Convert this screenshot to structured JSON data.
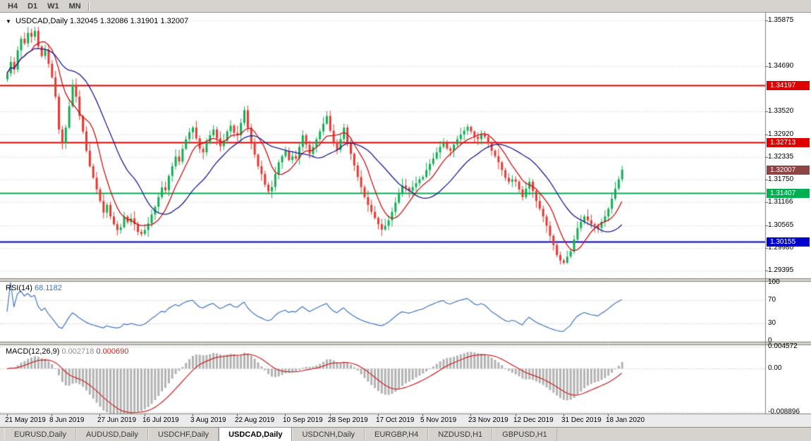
{
  "colors": {
    "window_bg": "#d6d3ce",
    "chart_bg": "#ffffff",
    "grid": "#d0d0d0",
    "panel_border": "#808080",
    "candle_up": "#0fae52",
    "candle_down": "#e63832",
    "ma_fast": "#cc1111",
    "ma_slow": "#1c1c8f",
    "level_red": "#dd0000",
    "level_green": "#00b050",
    "level_blue": "#0000cc",
    "current_price_bg": "#8e4444",
    "rsi_line": "#3f74c2",
    "macd_hist": "#b2b2b2",
    "macd_signal": "#cc2222",
    "indicator_level": "#bbbbbb",
    "date_axis_bg": "#ebebeb",
    "tab_active_bg": "#ffffff"
  },
  "toolbar": {
    "timeframes": [
      "H4",
      "D1",
      "W1",
      "MN"
    ]
  },
  "chart_header": {
    "icon": "▼",
    "symbol": "USDCAD,Daily",
    "ohlc": "1.32045 1.32086 1.31901 1.32007"
  },
  "rsi_header": {
    "label": "RSI(14)",
    "value": "68.1182"
  },
  "macd_header": {
    "label": "MACD(12,26,9)",
    "value_main": "0.002718",
    "value_signal": "0.000690"
  },
  "price_scale": {
    "grid_labels": [
      "1.35875",
      "1.34690",
      "1.33520",
      "1.32920",
      "1.32335",
      "1.31750",
      "1.31166",
      "1.30565",
      "1.29980",
      "1.29395"
    ],
    "level_labels": [
      {
        "text": "1.34197",
        "value": 1.34197,
        "color_key": "level_red"
      },
      {
        "text": "1.32713",
        "value": 1.32713,
        "color_key": "level_red"
      },
      {
        "text": "1.31407",
        "value": 1.31407,
        "color_key": "level_green"
      },
      {
        "text": "1.30155",
        "value": 1.30155,
        "color_key": "level_blue"
      }
    ],
    "current_price": {
      "text": "1.32007",
      "value": 1.32007
    }
  },
  "rsi_scale": [
    "100",
    "70",
    "30",
    "0"
  ],
  "macd_scale": [
    "0.004572",
    "0.00",
    "-0.008896"
  ],
  "tabs": [
    "EURUSD,Daily",
    "AUDUSD,Daily",
    "USDCHF,Daily",
    "USDCAD,Daily",
    "USDCNH,Daily",
    "EURGBP,H4",
    "NZDUSD,H1",
    "GBPUSD,H1"
  ],
  "active_tab": "USDCAD,Daily",
  "chart_data": {
    "type": "candlestick",
    "symbol": "USDCAD",
    "timeframe": "Daily",
    "ohlc_display": {
      "open": 1.32045,
      "high": 1.32086,
      "low": 1.31901,
      "close": 1.32007
    },
    "y_range": [
      1.292,
      1.36
    ],
    "x_labels": [
      "21 May 2019",
      "8 Jun 2019",
      "27 Jun 2019",
      "16 Jul 2019",
      "3 Aug 2019",
      "22 Aug 2019",
      "10 Sep 2019",
      "28 Sep 2019",
      "17 Oct 2019",
      "5 Nov 2019",
      "23 Nov 2019",
      "12 Dec 2019",
      "31 Dec 2019",
      "18 Jan 2020"
    ],
    "x_label_indices": [
      0,
      13,
      27,
      40,
      54,
      67,
      81,
      94,
      108,
      121,
      135,
      148,
      162,
      175
    ],
    "closes": [
      1.345,
      1.348,
      1.346,
      1.351,
      1.354,
      1.3528,
      1.3555,
      1.3545,
      1.356,
      1.352,
      1.3495,
      1.3512,
      1.3475,
      1.344,
      1.339,
      1.3305,
      1.327,
      1.331,
      1.3365,
      1.342,
      1.339,
      1.334,
      1.33,
      1.325,
      1.321,
      1.318,
      1.315,
      1.312,
      1.309,
      1.311,
      1.308,
      1.306,
      1.3045,
      1.3052,
      1.308,
      1.3065,
      1.3075,
      1.306,
      1.304,
      1.3035,
      1.3045,
      1.3062,
      1.3085,
      1.3105,
      1.313,
      1.3155,
      1.3148,
      1.3185,
      1.321,
      1.3235,
      1.3222,
      1.3255,
      1.328,
      1.3298,
      1.331,
      1.3282,
      1.3255,
      1.3246,
      1.327,
      1.329,
      1.3305,
      1.3282,
      1.3262,
      1.3276,
      1.33,
      1.3315,
      1.3296,
      1.329,
      1.3322,
      1.3355,
      1.331,
      1.3272,
      1.324,
      1.321,
      1.319,
      1.3162,
      1.3145,
      1.3156,
      1.319,
      1.322,
      1.3236,
      1.325,
      1.3226,
      1.3236,
      1.323,
      1.326,
      1.329,
      1.3266,
      1.3242,
      1.326,
      1.328,
      1.33,
      1.332,
      1.334,
      1.3302,
      1.3272,
      1.3252,
      1.328,
      1.331,
      1.3272,
      1.3242,
      1.3212,
      1.3182,
      1.3156,
      1.313,
      1.311,
      1.3092,
      1.3076,
      1.306,
      1.3046,
      1.3056,
      1.307,
      1.3092,
      1.3116,
      1.314,
      1.316,
      1.3154,
      1.3146,
      1.3156,
      1.3166,
      1.3176,
      1.3182,
      1.32,
      1.3216,
      1.323,
      1.3246,
      1.326,
      1.327,
      1.3256,
      1.325,
      1.3266,
      1.328,
      1.3292,
      1.3302,
      1.3312,
      1.33,
      1.3286,
      1.328,
      1.3292,
      1.3286,
      1.327,
      1.325,
      1.3236,
      1.322,
      1.32,
      1.318,
      1.317,
      1.3176,
      1.317,
      1.315,
      1.313,
      1.3152,
      1.317,
      1.3146,
      1.312,
      1.31,
      1.308,
      1.3056,
      1.303,
      1.3006,
      1.298,
      1.2966,
      1.296,
      1.2976,
      1.299,
      1.302,
      1.305,
      1.3066,
      1.308,
      1.307,
      1.306,
      1.3056,
      1.305,
      1.3066,
      1.308,
      1.31,
      1.3126,
      1.3152,
      1.3176,
      1.32007
    ],
    "levels": [
      {
        "value": 1.34197,
        "type": "resistance",
        "color_key": "level_red"
      },
      {
        "value": 1.32713,
        "type": "resistance",
        "color_key": "level_red"
      },
      {
        "value": 1.31407,
        "type": "support",
        "color_key": "level_green"
      },
      {
        "value": 1.30155,
        "type": "support",
        "color_key": "level_blue"
      }
    ],
    "moving_averages": [
      {
        "period": 8,
        "color_key": "ma_fast"
      },
      {
        "period": 21,
        "color_key": "ma_slow"
      }
    ],
    "indicators": [
      {
        "name": "RSI",
        "period": 14,
        "last_value": 68.1182,
        "scale": [
          100,
          70,
          30,
          0
        ]
      },
      {
        "name": "MACD",
        "params": [
          12,
          26,
          9
        ],
        "last_main": 0.002718,
        "last_signal": 0.00069,
        "scale": [
          0.004572,
          0,
          -0.008896
        ]
      }
    ]
  }
}
